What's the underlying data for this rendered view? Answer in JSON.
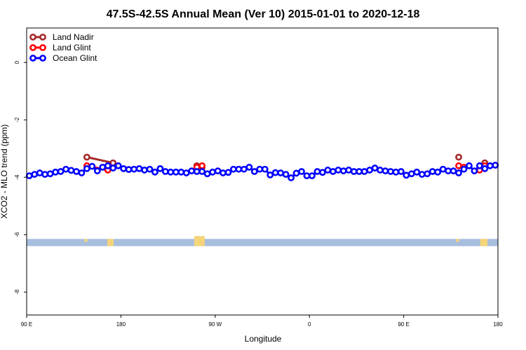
{
  "chart_data": {
    "type": "line",
    "title": "47.5S-42.5S Annual Mean (Ver 10)   2015-01-01 to 2020-12-18",
    "xlabel": "Longitude",
    "ylabel": "XCO2 - MLO trend (ppm)",
    "xlim": [
      90,
      540
    ],
    "ylim": [
      -8.8,
      1.2
    ],
    "x_ticks": [
      {
        "value": 90,
        "label": "90 E"
      },
      {
        "value": 180,
        "label": "180"
      },
      {
        "value": 270,
        "label": "90 W"
      },
      {
        "value": 360,
        "label": "0"
      },
      {
        "value": 450,
        "label": "90 E"
      },
      {
        "value": 540,
        "label": "180"
      }
    ],
    "y_ticks": [
      {
        "value": 0,
        "label": "0"
      },
      {
        "value": -2,
        "label": "-2"
      },
      {
        "value": -4,
        "label": "-4"
      },
      {
        "value": -6,
        "label": "-6"
      },
      {
        "value": -8,
        "label": "-8"
      }
    ],
    "legend_position": "top-left",
    "series": [
      {
        "name": "Land Nadir",
        "color": "#a52a2a",
        "segments": [
          {
            "x": [
              147.5,
              172.5
            ],
            "y": [
              -3.3,
              -3.5
            ]
          },
          {
            "x": [
              252.5,
              257.5
            ],
            "y": [
              -3.6,
              -3.65
            ]
          },
          {
            "x": [
              502.5
            ],
            "y": [
              -3.3
            ]
          },
          {
            "x": [
              527.5
            ],
            "y": [
              -3.5
            ]
          }
        ]
      },
      {
        "name": "Land Glint",
        "color": "#ff0000",
        "segments": [
          {
            "x": [
              147.5,
              167.5
            ],
            "y": [
              -3.6,
              -3.75
            ]
          },
          {
            "x": [
              252.5,
              257.5
            ],
            "y": [
              -3.65,
              -3.6
            ]
          },
          {
            "x": [
              502.5,
              507.5
            ],
            "y": [
              -3.6,
              -3.65
            ]
          },
          {
            "x": [
              522.5,
              527.5
            ],
            "y": [
              -3.75,
              -3.6
            ]
          }
        ]
      },
      {
        "name": "Ocean Glint",
        "color": "#0000ff",
        "segments": [
          {
            "x": [
              92.5,
              97.5,
              102.5,
              107.5,
              112.5,
              117.5,
              122.5,
              127.5,
              132.5,
              137.5,
              142.5,
              147.5,
              152.5,
              157.5,
              162.5,
              167.5,
              172.5,
              177.5,
              182.5,
              187.5,
              192.5,
              197.5,
              202.5,
              207.5,
              212.5,
              217.5,
              222.5,
              227.5,
              232.5,
              237.5,
              242.5,
              247.5,
              252.5,
              257.5,
              262.5,
              267.5,
              272.5,
              277.5,
              282.5,
              287.5,
              292.5,
              297.5,
              302.5,
              307.5,
              312.5,
              317.5,
              322.5,
              327.5,
              332.5,
              337.5,
              342.5,
              347.5,
              352.5,
              357.5,
              362.5,
              367.5,
              372.5,
              377.5,
              382.5,
              387.5,
              392.5,
              397.5,
              402.5,
              407.5,
              412.5,
              417.5,
              422.5,
              427.5,
              432.5,
              437.5,
              442.5,
              447.5,
              452.5,
              457.5,
              462.5,
              467.5,
              472.5,
              477.5,
              482.5,
              487.5,
              492.5,
              497.5,
              502.5,
              507.5,
              512.5,
              517.5,
              522.5,
              527.5,
              532.5,
              537.5
            ],
            "y": [
              -3.95,
              -3.9,
              -3.85,
              -3.9,
              -3.88,
              -3.82,
              -3.8,
              -3.72,
              -3.76,
              -3.8,
              -3.85,
              -3.7,
              -3.62,
              -3.78,
              -3.65,
              -3.6,
              -3.68,
              -3.6,
              -3.7,
              -3.73,
              -3.72,
              -3.7,
              -3.75,
              -3.72,
              -3.82,
              -3.7,
              -3.8,
              -3.82,
              -3.82,
              -3.82,
              -3.85,
              -3.78,
              -3.8,
              -3.8,
              -3.88,
              -3.82,
              -3.78,
              -3.85,
              -3.83,
              -3.72,
              -3.72,
              -3.72,
              -3.65,
              -3.8,
              -3.72,
              -3.72,
              -3.92,
              -3.84,
              -3.85,
              -3.9,
              -4.02,
              -3.86,
              -3.8,
              -3.95,
              -3.95,
              -3.8,
              -3.83,
              -3.75,
              -3.8,
              -3.75,
              -3.78,
              -3.75,
              -3.8,
              -3.8,
              -3.8,
              -3.75,
              -3.68,
              -3.75,
              -3.78,
              -3.8,
              -3.82,
              -3.8,
              -3.93,
              -3.88,
              -3.82,
              -3.9,
              -3.88,
              -3.8,
              -3.82,
              -3.72,
              -3.78,
              -3.78,
              -3.85,
              -3.72,
              -3.6,
              -3.78,
              -3.6,
              -3.7,
              -3.6,
              -3.58
            ]
          }
        ]
      }
    ],
    "land_band": {
      "y_range": [
        -6.15,
        -6.4
      ],
      "ocean_color": "#a8bede",
      "land_color": "#f5d47a",
      "land_spans": [
        {
          "lon_range": [
            145,
            148
          ],
          "y_range": [
            -6.15,
            -6.25
          ]
        },
        {
          "lon_range": [
            167,
            173
          ],
          "y_range": [
            -6.15,
            -6.4
          ]
        },
        {
          "lon_range": [
            250,
            260
          ],
          "y_range": [
            -6.05,
            -6.4
          ]
        },
        {
          "lon_range": [
            500,
            503
          ],
          "y_range": [
            -6.15,
            -6.25
          ]
        },
        {
          "lon_range": [
            523,
            530
          ],
          "y_range": [
            -6.15,
            -6.4
          ]
        }
      ]
    }
  }
}
